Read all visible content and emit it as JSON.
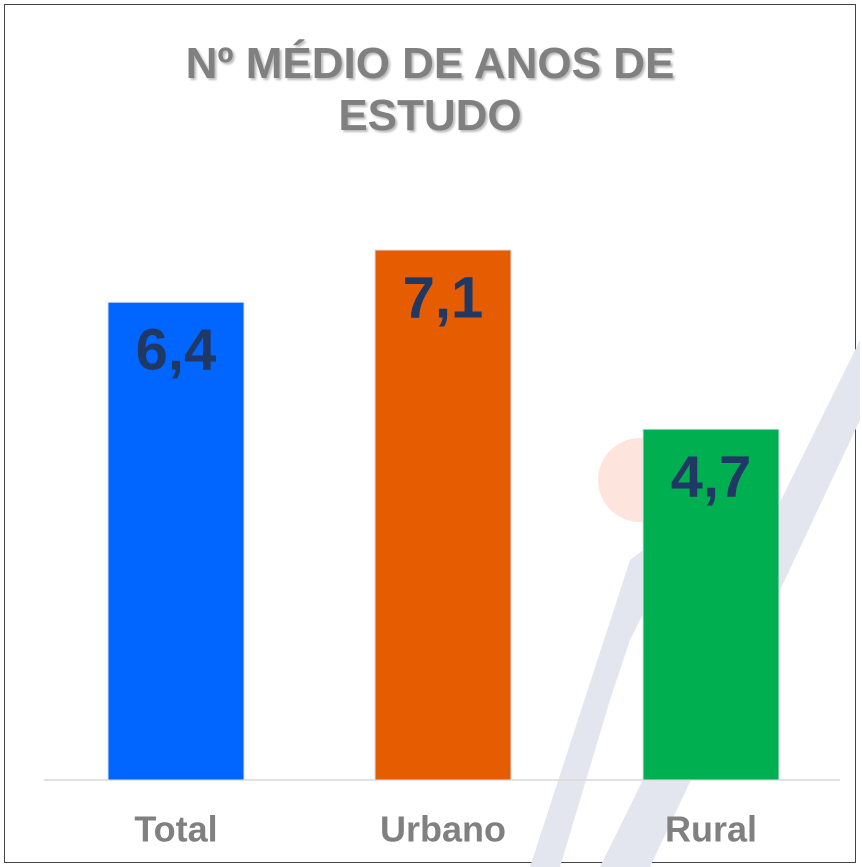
{
  "chart_data": {
    "type": "bar",
    "title": "Nº MÉDIO DE ANOS DE ESTUDO",
    "categories": [
      "Total",
      "Urbano",
      "Rural"
    ],
    "values": [
      6.4,
      7.1,
      4.7
    ],
    "value_labels": [
      "6,4",
      "7,1",
      "4,7"
    ],
    "colors": [
      "#0066ff",
      "#e65c00",
      "#00b050"
    ]
  }
}
